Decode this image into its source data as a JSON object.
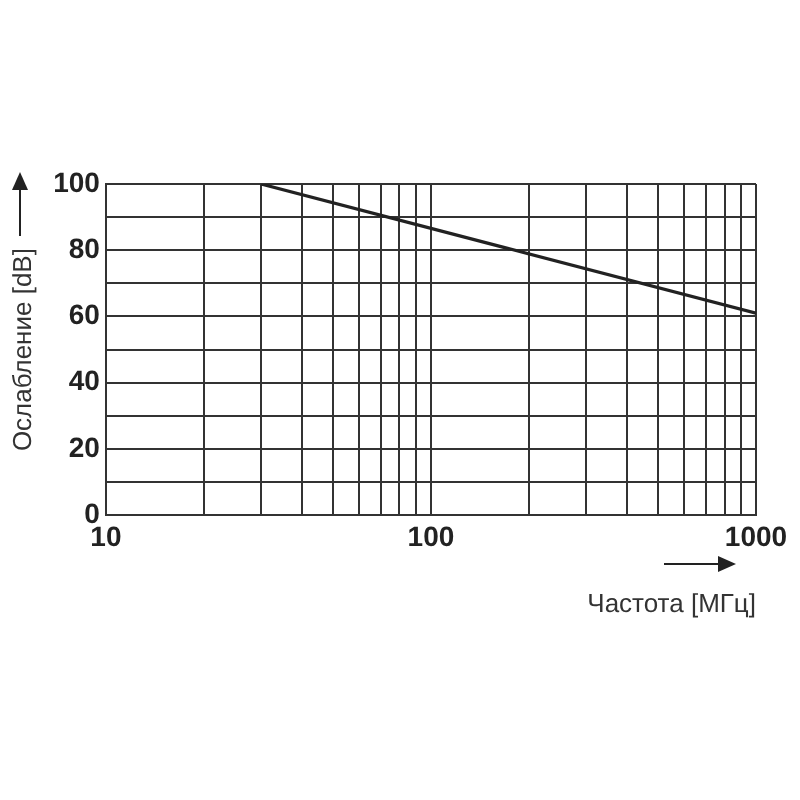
{
  "chart_data": {
    "type": "line",
    "xlabel": "Частота [МГц]",
    "ylabel": "Ослабление [dB]",
    "x": [
      30,
      1000
    ],
    "series": [
      {
        "color": "#222222",
        "values": [
          100,
          61
        ]
      }
    ],
    "log": "x",
    "xlim": [
      10,
      1000
    ],
    "xticks": [
      10,
      {
        "value": 20,
        "label": null
      },
      {
        "value": 30,
        "label": null
      },
      {
        "value": 40,
        "label": null
      },
      {
        "value": 50,
        "label": null
      },
      {
        "value": 60,
        "label": null
      },
      {
        "value": 70,
        "label": null
      },
      {
        "value": 80,
        "label": null
      },
      {
        "value": 90,
        "label": null
      },
      100,
      {
        "value": 200,
        "label": null
      },
      {
        "value": 300,
        "label": null
      },
      {
        "value": 400,
        "label": null
      },
      {
        "value": 500,
        "label": null
      },
      {
        "value": 600,
        "label": null
      },
      {
        "value": 700,
        "label": null
      },
      {
        "value": 800,
        "label": null
      },
      {
        "value": 900,
        "label": null
      },
      1000
    ],
    "ylim": [
      0,
      100
    ],
    "yticks": [
      0,
      {
        "value": 10,
        "label": null
      },
      20,
      {
        "value": 30,
        "label": null
      },
      40,
      {
        "value": 50,
        "label": null
      },
      60,
      {
        "value": 70,
        "label": null
      },
      80,
      {
        "value": 90,
        "label": null
      },
      100
    ],
    "grid": true,
    "legend": false,
    "marker": "none",
    "line_style": "solid"
  }
}
